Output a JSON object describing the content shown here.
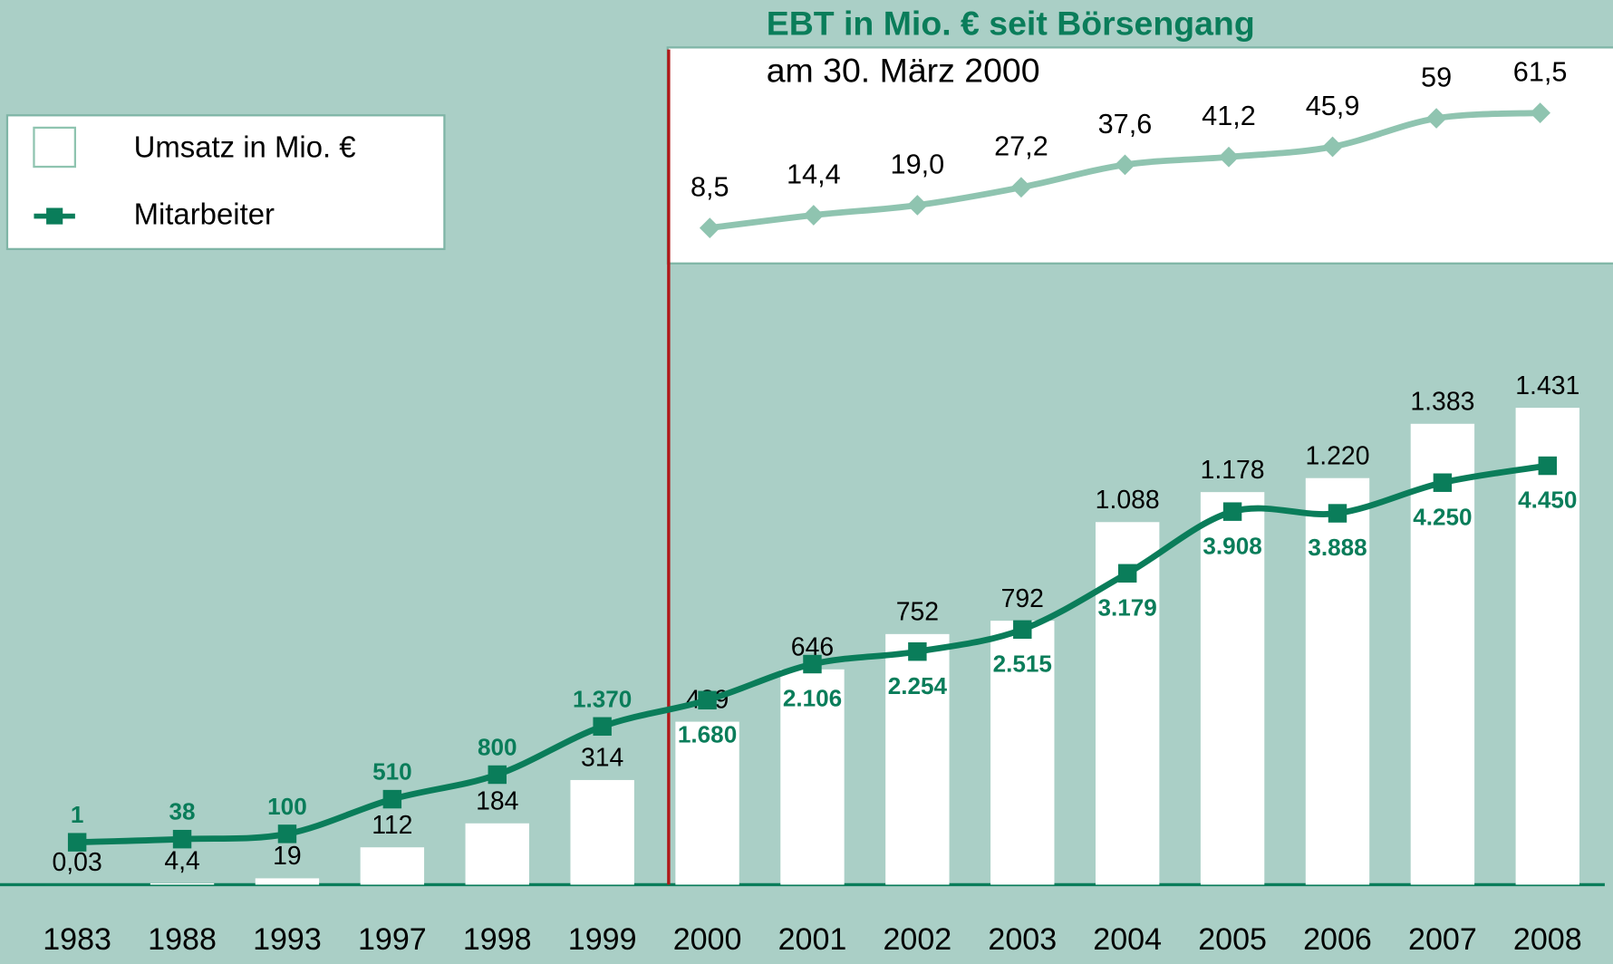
{
  "chart_data": [
    {
      "type": "bar",
      "categories": [
        "1983",
        "1988",
        "1993",
        "1997",
        "1998",
        "1999",
        "2000",
        "2001",
        "2002",
        "2003",
        "2004",
        "2005",
        "2006",
        "2007",
        "2008"
      ],
      "ylim": [
        0,
        1600
      ],
      "y2lim": [
        -500,
        5800
      ],
      "legend": "upper left",
      "series": [
        {
          "name": "Umsatz in Mio. €",
          "type": "bar",
          "color": "#ffffff",
          "values": [
            0.03,
            4.4,
            19,
            112,
            184,
            314,
            489,
            646,
            752,
            792,
            1088,
            1178,
            1220,
            1383,
            1431
          ],
          "value_labels": [
            "0,03",
            "4,4",
            "19",
            "112",
            "184",
            "314",
            "489",
            "646",
            "752",
            "792",
            "1.088",
            "1.178",
            "1.220",
            "1.383",
            "1.431"
          ]
        },
        {
          "name": "Mitarbeiter",
          "type": "line",
          "axis": "y2",
          "color": "#0a7d5a",
          "values": [
            1,
            38,
            100,
            510,
            800,
            1370,
            1680,
            2106,
            2254,
            2515,
            3179,
            3908,
            3888,
            4250,
            4450
          ],
          "value_labels": [
            "1",
            "38",
            "100",
            "510",
            "800",
            "1.370",
            "1.680",
            "2.106",
            "2.254",
            "2.515",
            "3.179",
            "3.908",
            "3.888",
            "4.250",
            "4.450"
          ]
        }
      ]
    },
    {
      "type": "line",
      "title": "EBT in Mio. € seit Börsengang",
      "subtitle": "am 30. März 2000",
      "ylim": [
        -5,
        85
      ],
      "series": [
        {
          "color": "#8fc4b0",
          "values": [
            8.5,
            14.4,
            19.0,
            27.2,
            37.6,
            41.2,
            45.9,
            59,
            61.5
          ],
          "value_labels": [
            "8,5",
            "14,4",
            "19,0",
            "27,2",
            "37,6",
            "41,2",
            "45,9",
            "59",
            "61,5"
          ]
        }
      ]
    }
  ]
}
